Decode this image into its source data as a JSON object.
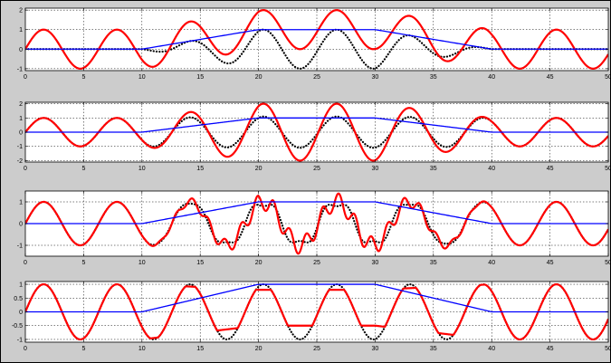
{
  "figure": {
    "background": "#cccccc",
    "axes_background": "#ffffff"
  },
  "colors": {
    "envelope": "#0000ff",
    "output": "#ff0000",
    "reference": "#000000"
  },
  "chart_data": [
    {
      "type": "line",
      "xlim": [
        0,
        50
      ],
      "ylim": [
        -1.1,
        2.1
      ],
      "grid": true,
      "xticks": [
        0,
        5,
        10,
        15,
        20,
        25,
        30,
        35,
        40,
        45,
        50
      ],
      "xtick_labels": [
        "0",
        "5",
        "10",
        "15",
        "20",
        "25",
        "30",
        "35",
        "40",
        "45",
        "50"
      ],
      "yticks": [
        -1,
        0,
        1,
        2
      ],
      "ytick_labels": [
        "-1",
        "0",
        "1",
        "2"
      ],
      "period": 6.283,
      "envelope": {
        "x": [
          0,
          10,
          20,
          30,
          40,
          50
        ],
        "y": [
          0,
          0,
          1,
          1,
          0,
          0
        ]
      },
      "series": [
        {
          "style": "dotted",
          "color": "#000000",
          "formula": "sin(x) * envelope"
        },
        {
          "style": "solid",
          "color": "#ff0000",
          "formula": "sin(x) + envelope"
        },
        {
          "style": "solid",
          "color": "#0000ff",
          "formula": "envelope"
        }
      ]
    },
    {
      "type": "line",
      "xlim": [
        0,
        50
      ],
      "ylim": [
        -2.1,
        2.1
      ],
      "grid": true,
      "xticks": [
        0,
        5,
        10,
        15,
        20,
        25,
        30,
        35,
        40,
        45,
        50
      ],
      "xtick_labels": [
        "0",
        "5",
        "10",
        "15",
        "20",
        "25",
        "30",
        "35",
        "40",
        "45",
        "50"
      ],
      "yticks": [
        -2,
        -1,
        0,
        1,
        2
      ],
      "ytick_labels": [
        "-2",
        "-1",
        "0",
        "1",
        "2"
      ],
      "period": 6.283,
      "envelope": {
        "x": [
          0,
          10,
          20,
          30,
          40,
          50
        ],
        "y": [
          0,
          0,
          1,
          1,
          0,
          0
        ]
      },
      "series": [
        {
          "style": "dotted",
          "color": "#000000",
          "formula": "sin(x) * (1 + 0.1 * envelope)"
        },
        {
          "style": "solid",
          "color": "#ff0000",
          "formula": "sin(x) * (1 + envelope)"
        },
        {
          "style": "solid",
          "color": "#0000ff",
          "formula": "envelope"
        }
      ]
    },
    {
      "type": "line",
      "xlim": [
        0,
        50
      ],
      "ylim": [
        -1.5,
        1.5
      ],
      "grid": true,
      "xticks": [
        0,
        5,
        10,
        15,
        20,
        25,
        30,
        35,
        40,
        45,
        50
      ],
      "xtick_labels": [
        "0",
        "5",
        "10",
        "15",
        "20",
        "25",
        "30",
        "35",
        "40",
        "45",
        "50"
      ],
      "yticks": [
        -1,
        0,
        1
      ],
      "ytick_labels": [
        "-1",
        "0",
        "1"
      ],
      "period": 6.283,
      "envelope": {
        "x": [
          0,
          10,
          20,
          30,
          40,
          50
        ],
        "y": [
          0,
          0,
          1,
          1,
          0,
          0
        ]
      },
      "series": [
        {
          "style": "dotted",
          "color": "#000000",
          "formula": "sin(x) + 0.2 * envelope * sin(3x)"
        },
        {
          "style": "solid",
          "color": "#ff0000",
          "formula": "sin(x) + 0.4 * envelope * sin(4.5x)"
        },
        {
          "style": "solid",
          "color": "#0000ff",
          "formula": "envelope"
        }
      ]
    },
    {
      "type": "line",
      "xlim": [
        0,
        50
      ],
      "ylim": [
        -1.1,
        1.1
      ],
      "grid": true,
      "xticks": [
        0,
        5,
        10,
        15,
        20,
        25,
        30,
        35,
        40,
        45,
        50
      ],
      "xtick_labels": [
        "0",
        "5",
        "10",
        "15",
        "20",
        "25",
        "30",
        "35",
        "40",
        "45",
        "50"
      ],
      "yticks": [
        -1,
        -0.5,
        0,
        0.5,
        1
      ],
      "ytick_labels": [
        "-1",
        "-0.5",
        "0",
        "0.5",
        "1"
      ],
      "period": 6.283,
      "envelope": {
        "x": [
          0,
          10,
          20,
          30,
          40,
          50
        ],
        "y": [
          0,
          0,
          1,
          1,
          0,
          0
        ]
      },
      "series": [
        {
          "style": "dotted",
          "color": "#000000",
          "formula": "sin(x)"
        },
        {
          "style": "solid",
          "color": "#ff0000",
          "formula": "sin(x) clipped to [-1 + 0.5*envelope, 1 - 0.2*envelope]"
        },
        {
          "style": "solid",
          "color": "#0000ff",
          "formula": "envelope"
        }
      ]
    }
  ]
}
